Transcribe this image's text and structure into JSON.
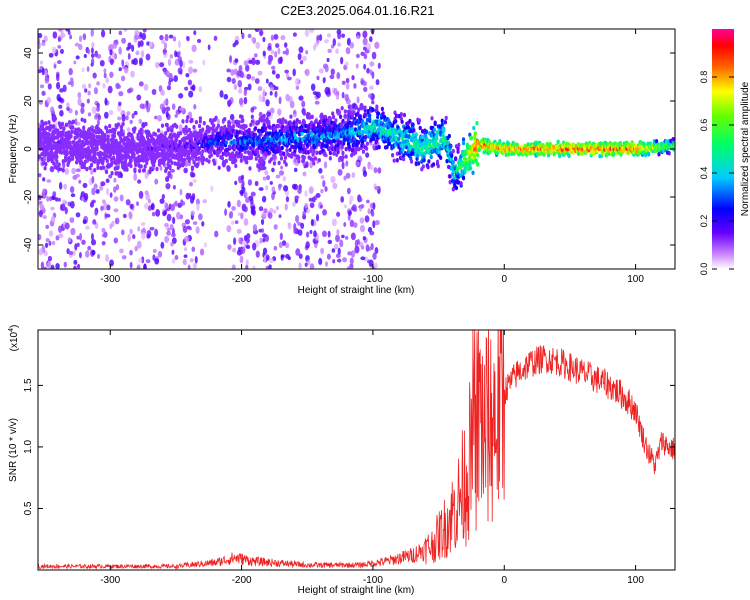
{
  "title": "C2E3.2025.064.01.16.R21",
  "chart_data": [
    {
      "type": "heatmap",
      "xlabel": "Height of straight line (km)",
      "ylabel": "Frequency (Hz)",
      "xlim": [
        -355,
        130
      ],
      "ylim": [
        -50,
        50
      ],
      "xticks": [
        "-300",
        "-200",
        "-100",
        "0",
        "100"
      ],
      "yticks": [
        "40",
        "20",
        "0",
        "-20",
        "-40"
      ],
      "colorbar": {
        "label": "Normalized spectral amplitude",
        "range": [
          0,
          1
        ],
        "ticks": [
          "0.0",
          "0.2",
          "0.4",
          "0.6",
          "0.8"
        ]
      },
      "description_points": [
        {
          "x": -330,
          "f": 2,
          "amp": 0.15
        },
        {
          "x": -290,
          "f": 0,
          "amp": 0.15
        },
        {
          "x": -250,
          "f": 1,
          "amp": 0.2
        },
        {
          "x": -220,
          "f": 3,
          "amp": 0.35
        },
        {
          "x": -190,
          "f": 3,
          "amp": 0.4
        },
        {
          "x": -150,
          "f": 5,
          "amp": 0.45
        },
        {
          "x": -120,
          "f": 6,
          "amp": 0.45
        },
        {
          "x": -100,
          "f": 10,
          "amp": 0.55
        },
        {
          "x": -80,
          "f": 5,
          "amp": 0.55
        },
        {
          "x": -60,
          "f": 0,
          "amp": 0.6
        },
        {
          "x": -45,
          "f": 5,
          "amp": 0.6
        },
        {
          "x": -38,
          "f": -10,
          "amp": 0.5
        },
        {
          "x": -20,
          "f": 2,
          "amp": 0.95
        },
        {
          "x": 0,
          "f": 0,
          "amp": 0.9
        },
        {
          "x": 50,
          "f": 0,
          "amp": 0.95
        },
        {
          "x": 100,
          "f": 0,
          "amp": 0.95
        },
        {
          "x": 125,
          "f": 1,
          "amp": 0.7
        }
      ]
    },
    {
      "type": "line",
      "xlabel": "Height of straight line (km)",
      "ylabel": "SNR (10 * v/v)",
      "yscale_label": "(x10",
      "yscale_exp": "4",
      "xlim": [
        -355,
        130
      ],
      "ylim": [
        0,
        1.95
      ],
      "xticks": [
        "-300",
        "-200",
        "-100",
        "0",
        "100"
      ],
      "yticks": [
        "0.5",
        "1.0",
        "1.5"
      ],
      "color": "#ee2222",
      "x": [
        -355,
        -300,
        -250,
        -220,
        -205,
        -190,
        -150,
        -110,
        -90,
        -70,
        -55,
        -45,
        -35,
        -28,
        -22,
        -18,
        -15,
        -10,
        -5,
        0,
        10,
        20,
        30,
        40,
        50,
        60,
        70,
        80,
        90,
        100,
        105,
        110,
        115,
        120,
        125,
        130
      ],
      "y": [
        0.03,
        0.03,
        0.03,
        0.06,
        0.1,
        0.07,
        0.04,
        0.04,
        0.07,
        0.12,
        0.2,
        0.35,
        0.55,
        0.8,
        1.1,
        1.3,
        1.15,
        1.2,
        1.3,
        1.45,
        1.6,
        1.68,
        1.72,
        1.7,
        1.65,
        1.6,
        1.55,
        1.5,
        1.42,
        1.3,
        1.1,
        0.95,
        0.85,
        1.05,
        1.0,
        0.98
      ]
    }
  ]
}
